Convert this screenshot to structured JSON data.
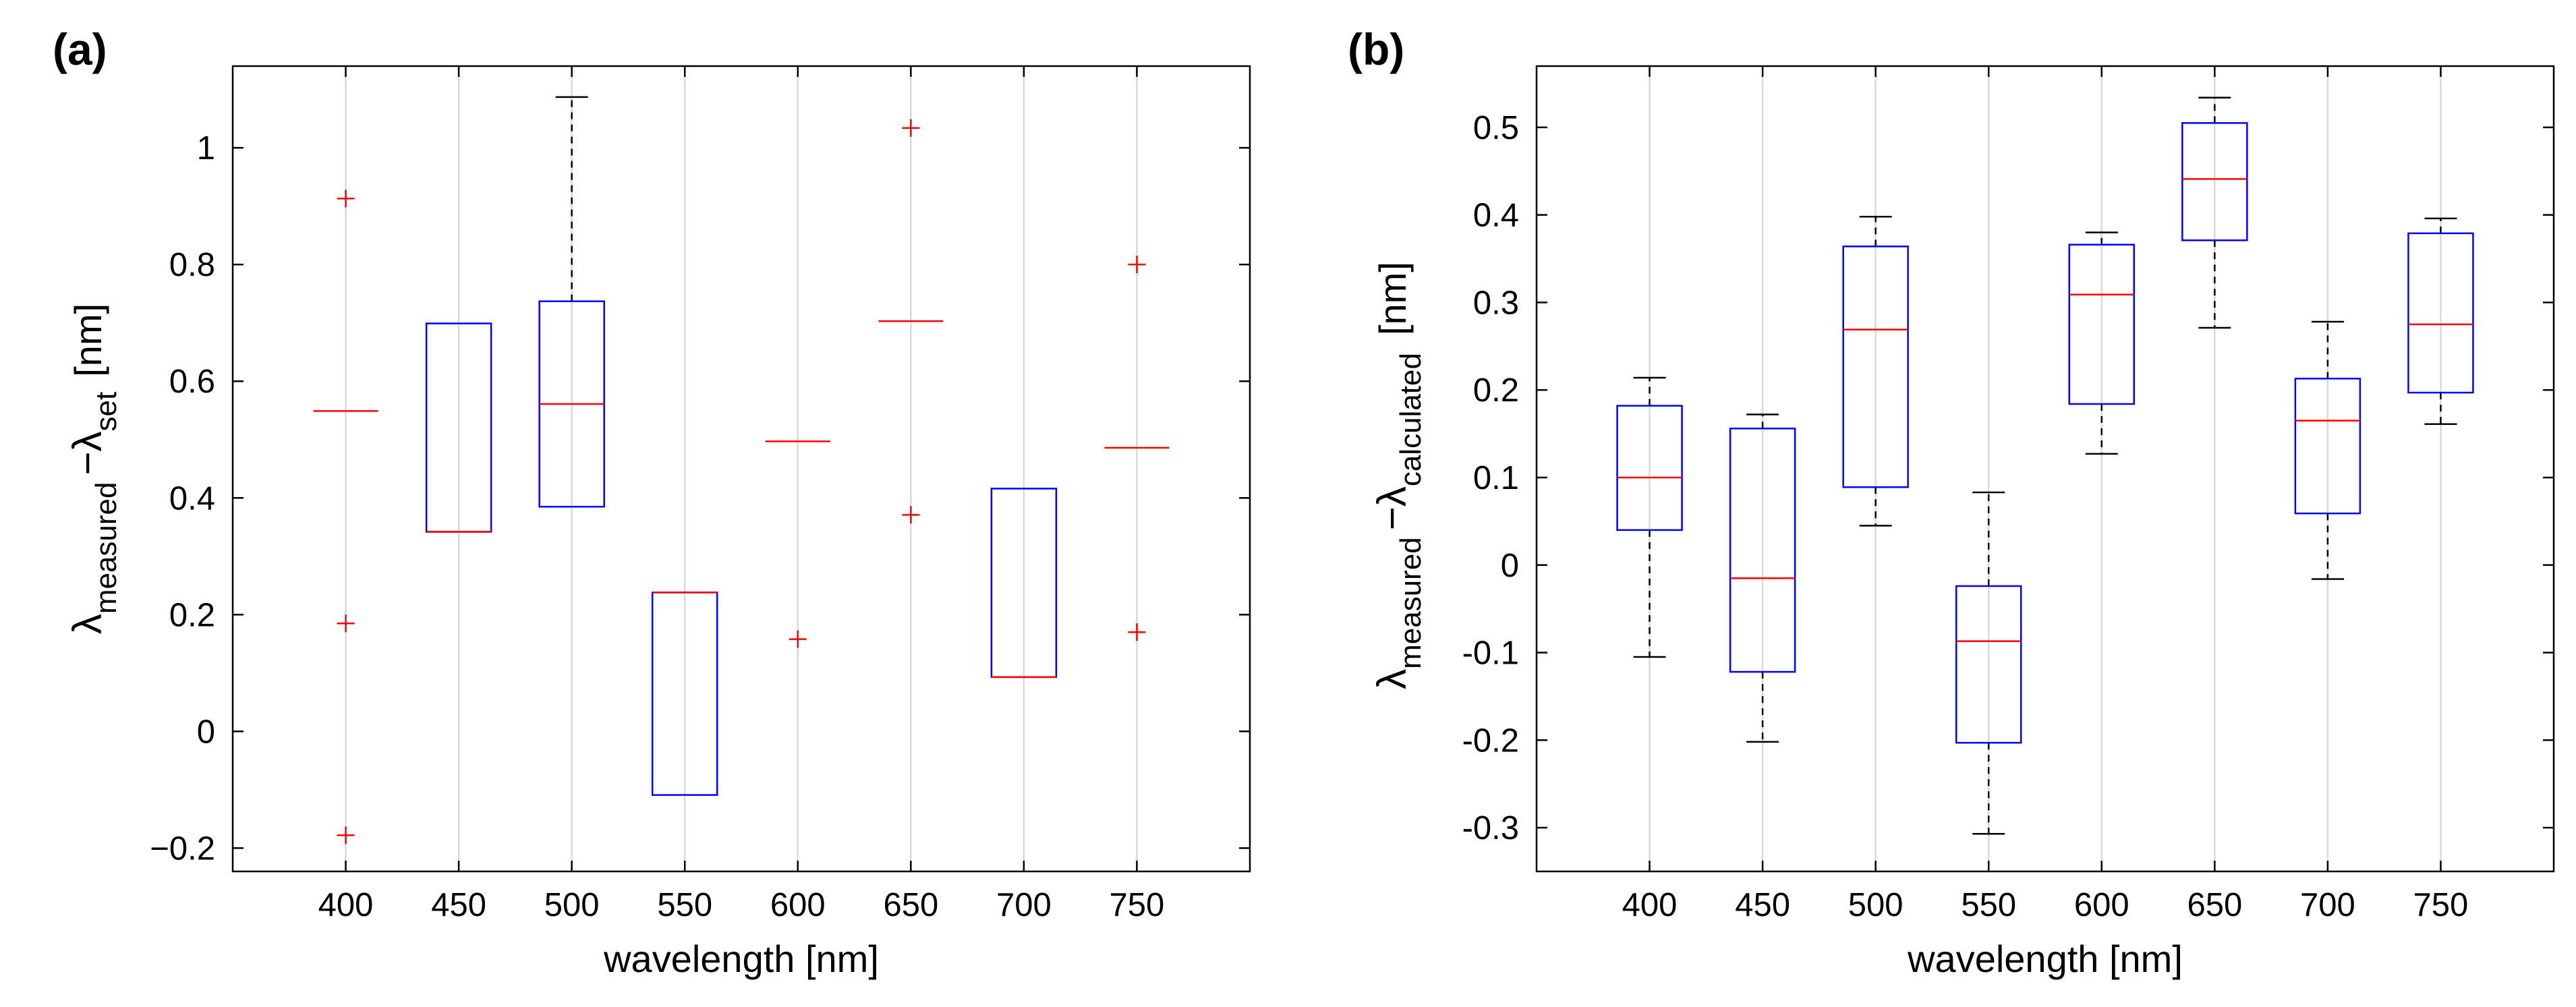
{
  "figure": {
    "chart_data": [
      {
        "type": "box",
        "panel_label": "(a)",
        "xlabel": "wavelength [nm]",
        "ylabel": {
          "lambda": "λ",
          "sub1": "measured",
          "minus": "−",
          "lambda2": "λ",
          "sub2": "set",
          "unit": "[nm]"
        },
        "ylim": [
          -0.24,
          1.14
        ],
        "yticks": [
          -0.2,
          0,
          0.2,
          0.4,
          0.6,
          0.8,
          1
        ],
        "ytick_labels": [
          "−0.2",
          "0",
          "0.2",
          "0.4",
          "0.6",
          "0.8",
          "1"
        ],
        "categories": [
          "400",
          "450",
          "500",
          "550",
          "600",
          "650",
          "700",
          "750"
        ],
        "grid_x": true,
        "boxes": [
          {
            "category": "400",
            "q1": 0.549,
            "median": 0.549,
            "q3": 0.549,
            "whisker_low": null,
            "whisker_high": null,
            "outliers": [
              0.913,
              0.185,
              -0.178
            ]
          },
          {
            "category": "450",
            "q1": 0.342,
            "median": 0.342,
            "q3": 0.699,
            "whisker_low": null,
            "whisker_high": null,
            "outliers": []
          },
          {
            "category": "500",
            "q1": 0.385,
            "median": 0.561,
            "q3": 0.737,
            "whisker_low": null,
            "whisker_high": 1.087,
            "outliers": []
          },
          {
            "category": "550",
            "q1": -0.109,
            "median": 0.238,
            "q3": 0.238,
            "whisker_low": null,
            "whisker_high": null,
            "outliers": []
          },
          {
            "category": "600",
            "q1": 0.497,
            "median": 0.497,
            "q3": 0.497,
            "whisker_low": null,
            "whisker_high": null,
            "outliers": [
              0.158
            ]
          },
          {
            "category": "650",
            "q1": 0.703,
            "median": 0.703,
            "q3": 0.703,
            "whisker_low": null,
            "whisker_high": null,
            "outliers": [
              1.034,
              0.371
            ]
          },
          {
            "category": "700",
            "q1": 0.093,
            "median": 0.093,
            "q3": 0.416,
            "whisker_low": null,
            "whisker_high": null,
            "outliers": []
          },
          {
            "category": "750",
            "q1": 0.486,
            "median": 0.486,
            "q3": 0.486,
            "whisker_low": null,
            "whisker_high": null,
            "outliers": [
              0.8,
              0.17
            ]
          }
        ]
      },
      {
        "type": "box",
        "panel_label": "(b)",
        "xlabel": "wavelength [nm]",
        "ylabel": {
          "lambda": "λ",
          "sub1": "measured",
          "minus": "−",
          "lambda2": "λ",
          "sub2": "calculated",
          "unit": "[nm]"
        },
        "ylim": [
          -0.35,
          0.57
        ],
        "yticks": [
          -0.3,
          -0.2,
          -0.1,
          0,
          0.1,
          0.2,
          0.3,
          0.4,
          0.5
        ],
        "ytick_labels": [
          "-0.3",
          "-0.2",
          "-0.1",
          "0",
          "0.1",
          "0.2",
          "0.3",
          "0.4",
          "0.5"
        ],
        "categories": [
          "400",
          "450",
          "500",
          "550",
          "600",
          "650",
          "700",
          "750"
        ],
        "grid_x": true,
        "boxes": [
          {
            "category": "400",
            "q1": 0.04,
            "median": 0.1,
            "q3": 0.182,
            "whisker_low": -0.105,
            "whisker_high": 0.214,
            "outliers": []
          },
          {
            "category": "450",
            "q1": -0.122,
            "median": -0.015,
            "q3": 0.156,
            "whisker_low": -0.202,
            "whisker_high": 0.172,
            "outliers": []
          },
          {
            "category": "500",
            "q1": 0.089,
            "median": 0.269,
            "q3": 0.364,
            "whisker_low": 0.045,
            "whisker_high": 0.398,
            "outliers": []
          },
          {
            "category": "550",
            "q1": -0.203,
            "median": -0.087,
            "q3": -0.024,
            "whisker_low": -0.307,
            "whisker_high": 0.083,
            "outliers": []
          },
          {
            "category": "600",
            "q1": 0.184,
            "median": 0.309,
            "q3": 0.366,
            "whisker_low": 0.127,
            "whisker_high": 0.38,
            "outliers": []
          },
          {
            "category": "650",
            "q1": 0.371,
            "median": 0.441,
            "q3": 0.505,
            "whisker_low": 0.271,
            "whisker_high": 0.534,
            "outliers": []
          },
          {
            "category": "700",
            "q1": 0.059,
            "median": 0.165,
            "q3": 0.213,
            "whisker_low": -0.016,
            "whisker_high": 0.278,
            "outliers": []
          },
          {
            "category": "750",
            "q1": 0.197,
            "median": 0.275,
            "q3": 0.379,
            "whisker_low": 0.161,
            "whisker_high": 0.396,
            "outliers": []
          }
        ]
      }
    ],
    "colors": {
      "box": "#0000ff",
      "median": "#ff0000",
      "whisker": "#000000",
      "outlier": "#ff0000",
      "grid": "#d9d9d9",
      "axis": "#000000"
    }
  }
}
